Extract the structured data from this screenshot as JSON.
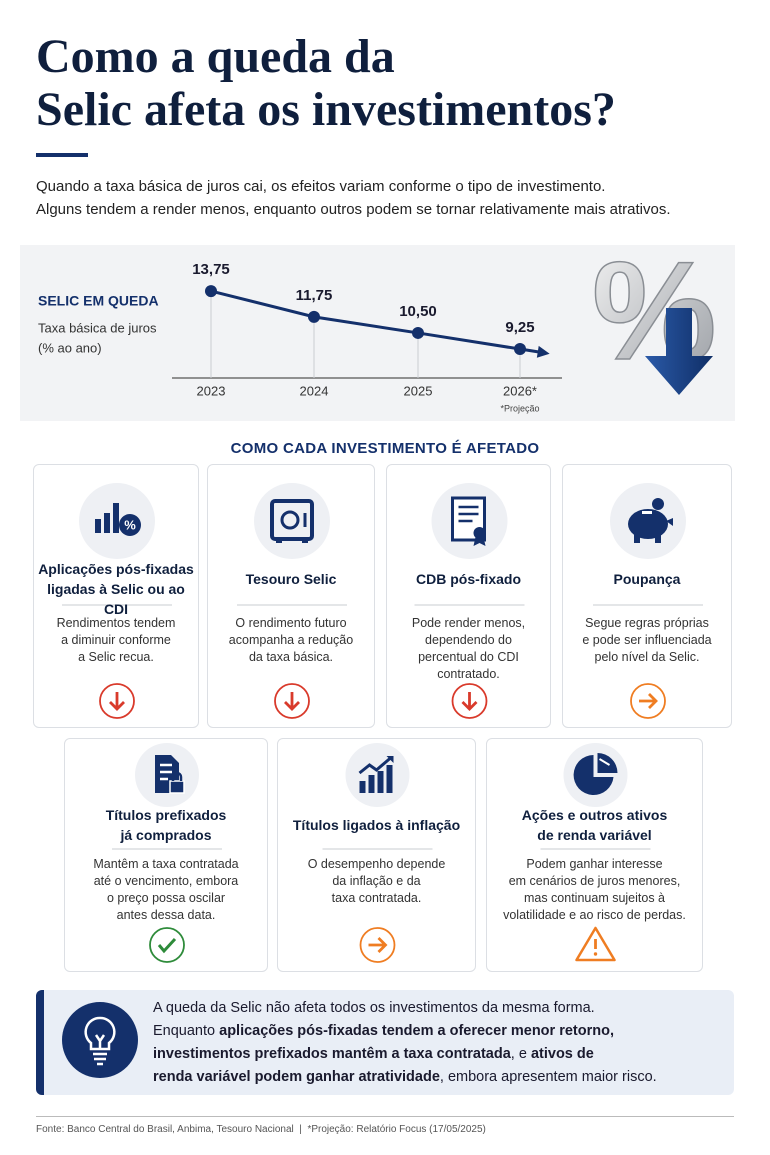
{
  "header": {
    "title_lines": [
      "Como a queda da",
      "Selic afeta os investimentos?"
    ],
    "intro_lines": [
      "Quando a taxa básica de juros cai, os efeitos variam conforme o tipo de investimento.",
      "Alguns tendem a render menos, enquanto outros podem se tornar relativamente mais atrativos."
    ]
  },
  "chart_data": {
    "type": "line",
    "title": "SELIC EM QUEDA",
    "subtitle": [
      "Taxa básica de juros",
      "(% ao ano)"
    ],
    "categories": [
      "2023",
      "2024",
      "2025",
      "2026*"
    ],
    "values": [
      13.75,
      11.75,
      10.5,
      9.25
    ],
    "value_labels": [
      "13,75",
      "11,75",
      "10,50",
      "9,25"
    ],
    "color": "#14306b",
    "ylim": [
      7,
      15
    ],
    "note": "*Projeção"
  },
  "section_title": "COMO CADA INVESTIMENTO É AFETADO",
  "cards": [
    {
      "title": [
        "Aplicações pós-fixadas",
        "ligadas à Selic ou ao CDI"
      ],
      "description": [
        "Rendimentos tendem",
        "a diminuir conforme",
        "a Selic recua."
      ]
    },
    {
      "title": [
        "Tesouro Selic"
      ],
      "description": [
        "O rendimento futuro",
        "acompanha a redução",
        "da taxa básica."
      ]
    },
    {
      "title": [
        "CDB pós-fixado"
      ],
      "description": [
        "Pode render menos,",
        "dependendo do",
        "percentual do CDI",
        "contratado."
      ]
    },
    {
      "title": [
        "Poupança"
      ],
      "description": [
        "Segue regras próprias",
        "e pode ser influenciada",
        "pelo nível da Selic."
      ]
    },
    {
      "title": [
        "Títulos prefixados",
        "já comprados"
      ],
      "description": [
        "Mantêm a taxa contratada",
        "até o vencimento, embora",
        "o preço possa oscilar",
        "antes dessa data."
      ]
    },
    {
      "title": [
        "Títulos ligados à inflação"
      ],
      "description": [
        "O desempenho depende",
        "da inflação e da",
        "taxa contratada."
      ]
    },
    {
      "title": [
        "Ações e outros ativos",
        "de renda variável"
      ],
      "description": [
        "Podem ganhar interesse",
        "em cenários de juros menores,",
        "mas continuam sujeitos à",
        "volatilidade e ao risco de perdas."
      ]
    }
  ],
  "conclusion": {
    "parts": [
      "A queda da Selic não afeta todos os investimentos da mesma forma.",
      "Enquanto ",
      "aplicações pós-fixadas tendem a oferecer menor retorno,",
      "investimentos prefixados mantêm a taxa contratada",
      ", e ",
      "ativos de",
      "renda variável podem ganhar atratividade",
      ", embora apresentem maior risco."
    ]
  },
  "footer": "Fonte: Banco Central do Brasil, Anbima, Tesouro Nacional  |  *Projeção: Relatório Focus (17/05/2025)"
}
